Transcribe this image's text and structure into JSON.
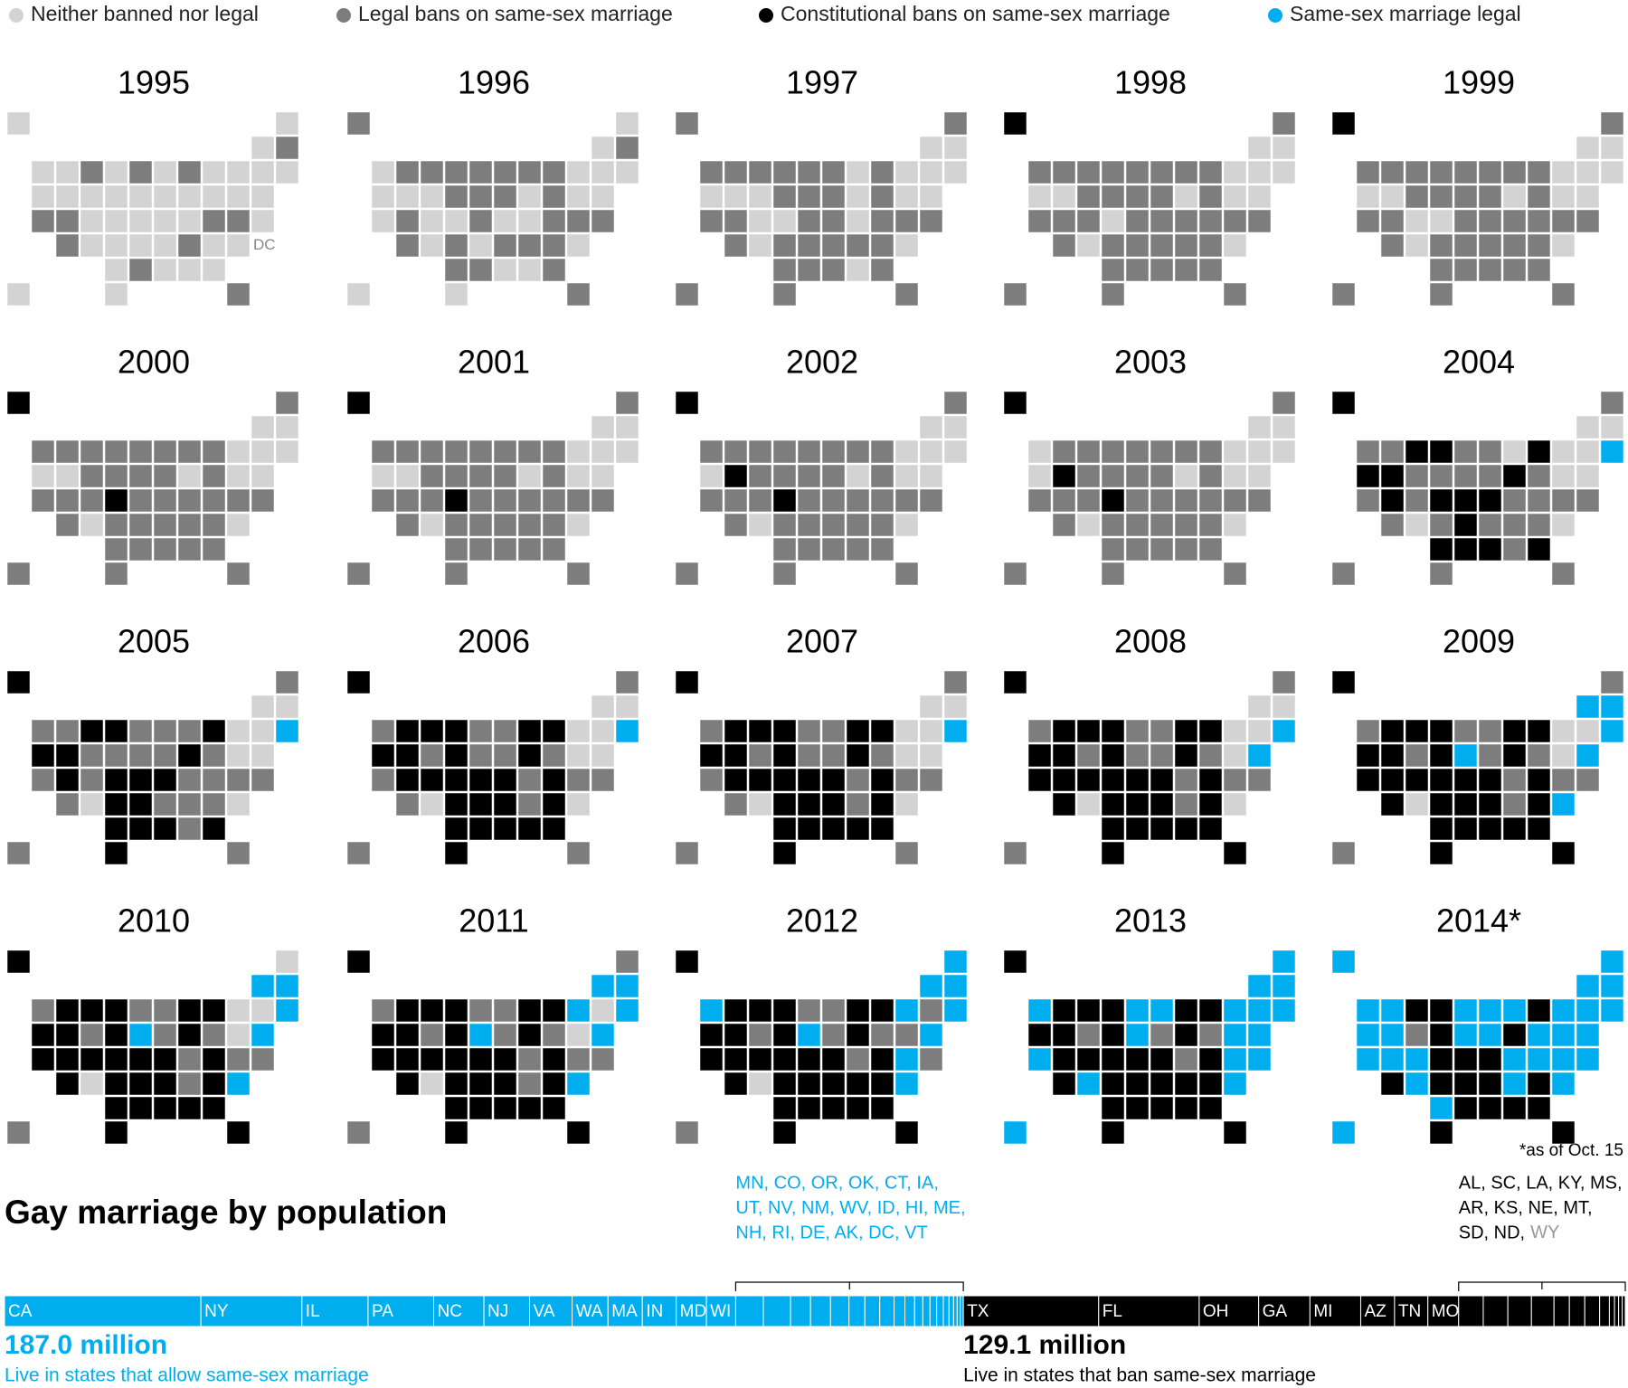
{
  "legend": [
    {
      "label": "Neither banned nor legal",
      "color": "#d3d3d3"
    },
    {
      "label": "Legal bans on same-sex marriage",
      "color": "#7d7d7d"
    },
    {
      "label": "Constitutional bans on same-sex marriage",
      "color": "#000000"
    },
    {
      "label": "Same-sex marriage legal",
      "color": "#00aeef"
    }
  ],
  "dc_label": "DC",
  "maps": [
    {
      "year": "1995",
      "neither": [
        "AK",
        "ME",
        "VT",
        "WA",
        "ID",
        "ND",
        "IL",
        "MI",
        "NY",
        "RI",
        "MA",
        "OR",
        "NV",
        "WY",
        "SD",
        "IA",
        "IN",
        "OH",
        "PA",
        "NJ",
        "CT",
        "CO",
        "NE",
        "MO",
        "KY",
        "WV",
        "DE",
        "NM",
        "KS",
        "AR",
        "TN",
        "SC",
        "DC",
        "OK",
        "MS",
        "AL",
        "GA",
        "HI",
        "TX"
      ],
      "constitutional": [],
      "legal": []
    },
    {
      "year": "1996",
      "neither": [
        "ME",
        "VT",
        "WA",
        "NY",
        "RI",
        "MA",
        "OR",
        "NV",
        "WY",
        "OH",
        "NJ",
        "CT",
        "CA",
        "CO",
        "NE",
        "KY",
        "WV",
        "NM",
        "AR",
        "DC",
        "MS",
        "AL",
        "HI",
        "TX"
      ],
      "constitutional": [],
      "legal": []
    },
    {
      "year": "1997",
      "neither": [
        "VT",
        "NY",
        "RI",
        "MA",
        "OR",
        "NV",
        "WI",
        "OH",
        "NJ",
        "CT",
        "CO",
        "NE",
        "WV",
        "NM",
        "DC",
        "AL",
        "WY",
        "NH"
      ],
      "constitutional": [],
      "legal": []
    },
    {
      "year": "1998",
      "neither": [
        "VT",
        "NY",
        "RI",
        "MA",
        "OR",
        "NV",
        "OH",
        "NJ",
        "CT",
        "NE",
        "NM",
        "DC",
        "NH"
      ],
      "constitutional": [
        "AK"
      ],
      "legal": []
    },
    {
      "year": "1999",
      "neither": [
        "VT",
        "NY",
        "RI",
        "MA",
        "OR",
        "NV",
        "OH",
        "NJ",
        "CT",
        "CO",
        "NE",
        "NM",
        "DC",
        "NH"
      ],
      "constitutional": [
        "AK"
      ],
      "legal": []
    },
    {
      "year": "2000",
      "neither": [
        "VT",
        "NY",
        "RI",
        "MA",
        "OR",
        "NV",
        "OH",
        "NJ",
        "CT",
        "NM",
        "DC",
        "NH"
      ],
      "constitutional": [
        "AK",
        "NE"
      ],
      "legal": []
    },
    {
      "year": "2001",
      "neither": [
        "VT",
        "NY",
        "RI",
        "MA",
        "OR",
        "NV",
        "OH",
        "NJ",
        "CT",
        "NM",
        "DC",
        "NH"
      ],
      "constitutional": [
        "AK",
        "NE"
      ],
      "legal": []
    },
    {
      "year": "2002",
      "neither": [
        "OR",
        "NM",
        "OH",
        "NY",
        "VT",
        "RI",
        "MA",
        "NJ",
        "CT",
        "DC",
        "NH"
      ],
      "constitutional": [
        "AK",
        "NE",
        "NV"
      ],
      "legal": []
    },
    {
      "year": "2003",
      "neither": [
        "WA",
        "OR",
        "NM",
        "OH",
        "NY",
        "VT",
        "RI",
        "MA",
        "NJ",
        "CT",
        "DC",
        "NH"
      ],
      "constitutional": [
        "AK",
        "NE",
        "NV"
      ],
      "legal": []
    },
    {
      "year": "2004",
      "neither": [
        "NM",
        "WI",
        "NY",
        "RI",
        "NJ",
        "CT",
        "NH",
        "VT",
        "DC"
      ],
      "constitutional": [
        "AK",
        "NE",
        "NV",
        "AR",
        "GA",
        "KY",
        "LA",
        "MI",
        "MS",
        "MO",
        "MT",
        "ND",
        "OH",
        "OK",
        "OR",
        "UT"
      ],
      "legal": [
        "MA"
      ]
    },
    {
      "year": "2005",
      "neither": [
        "NM",
        "NY",
        "RI",
        "NJ",
        "CT",
        "NH",
        "VT",
        "DC"
      ],
      "constitutional": [
        "AK",
        "NE",
        "NV",
        "AR",
        "GA",
        "KY",
        "LA",
        "MI",
        "MS",
        "MO",
        "MT",
        "ND",
        "OH",
        "OK",
        "OR",
        "UT",
        "KS",
        "TX"
      ],
      "legal": [
        "MA"
      ]
    },
    {
      "year": "2006",
      "neither": [
        "NM",
        "NY",
        "RI",
        "NJ",
        "CT",
        "NH",
        "VT",
        "DC"
      ],
      "constitutional": [
        "AK",
        "NE",
        "NV",
        "AR",
        "GA",
        "KY",
        "LA",
        "MI",
        "MS",
        "MO",
        "MT",
        "ND",
        "OH",
        "OK",
        "OR",
        "UT",
        "KS",
        "TX",
        "AL",
        "CO",
        "ID",
        "SC",
        "SD",
        "TN",
        "VA",
        "WI"
      ],
      "legal": [
        "MA"
      ]
    },
    {
      "year": "2007",
      "neither": [
        "NM",
        "NY",
        "RI",
        "NJ",
        "CT",
        "NH",
        "VT",
        "DC"
      ],
      "constitutional": [
        "AK",
        "NE",
        "NV",
        "AR",
        "GA",
        "KY",
        "LA",
        "MI",
        "MS",
        "MO",
        "MT",
        "ND",
        "OH",
        "OK",
        "OR",
        "UT",
        "KS",
        "TX",
        "AL",
        "CO",
        "ID",
        "SC",
        "SD",
        "TN",
        "VA",
        "WI"
      ],
      "legal": [
        "MA"
      ]
    },
    {
      "year": "2008",
      "neither": [
        "NM",
        "NY",
        "RI",
        "NJ",
        "NH",
        "VT",
        "DC"
      ],
      "constitutional": [
        "AK",
        "NE",
        "NV",
        "AR",
        "GA",
        "KY",
        "LA",
        "MI",
        "MS",
        "MO",
        "MT",
        "ND",
        "OH",
        "OK",
        "OR",
        "UT",
        "KS",
        "TX",
        "AL",
        "CO",
        "ID",
        "SC",
        "SD",
        "TN",
        "VA",
        "WI",
        "AZ",
        "CA",
        "FL"
      ],
      "legal": [
        "MA",
        "CT"
      ]
    },
    {
      "year": "2009",
      "neither": [
        "NM",
        "NY",
        "RI",
        "NJ"
      ],
      "constitutional": [
        "AK",
        "NE",
        "NV",
        "AR",
        "GA",
        "KY",
        "LA",
        "MI",
        "MS",
        "MO",
        "MT",
        "ND",
        "OH",
        "OK",
        "OR",
        "UT",
        "KS",
        "TX",
        "AL",
        "CO",
        "ID",
        "SC",
        "SD",
        "TN",
        "VA",
        "WI",
        "AZ",
        "CA",
        "FL"
      ],
      "legal": [
        "MA",
        "CT",
        "IA",
        "VT",
        "NH",
        "DC"
      ]
    },
    {
      "year": "2010",
      "neither": [
        "NM",
        "NY",
        "RI",
        "NJ",
        "ME"
      ],
      "constitutional": [
        "AK",
        "NE",
        "NV",
        "AR",
        "GA",
        "KY",
        "LA",
        "MI",
        "MS",
        "MO",
        "MT",
        "ND",
        "OH",
        "OK",
        "OR",
        "UT",
        "KS",
        "TX",
        "AL",
        "CO",
        "ID",
        "SC",
        "SD",
        "TN",
        "VA",
        "WI",
        "AZ",
        "CA",
        "FL"
      ],
      "legal": [
        "MA",
        "CT",
        "IA",
        "VT",
        "NH",
        "DC"
      ]
    },
    {
      "year": "2011",
      "neither": [
        "NM",
        "RI",
        "NJ"
      ],
      "constitutional": [
        "AK",
        "NE",
        "NV",
        "AR",
        "GA",
        "KY",
        "LA",
        "MI",
        "MS",
        "MO",
        "MT",
        "ND",
        "OH",
        "OK",
        "OR",
        "UT",
        "KS",
        "TX",
        "AL",
        "CO",
        "ID",
        "SC",
        "SD",
        "TN",
        "VA",
        "WI",
        "AZ",
        "CA",
        "FL"
      ],
      "legal": [
        "MA",
        "CT",
        "IA",
        "VT",
        "NH",
        "DC",
        "NY"
      ]
    },
    {
      "year": "2012",
      "neither": [
        "NM"
      ],
      "constitutional": [
        "AK",
        "NE",
        "NV",
        "AR",
        "GA",
        "KY",
        "LA",
        "MI",
        "MS",
        "MO",
        "MT",
        "ND",
        "OH",
        "OK",
        "OR",
        "UT",
        "KS",
        "TX",
        "AL",
        "CO",
        "ID",
        "SC",
        "SD",
        "TN",
        "VA",
        "WI",
        "AZ",
        "CA",
        "FL",
        "NC"
      ],
      "legal": [
        "MA",
        "CT",
        "IA",
        "VT",
        "NH",
        "DC",
        "NY",
        "WA",
        "ME",
        "MD"
      ]
    },
    {
      "year": "2013",
      "neither": [],
      "constitutional": [
        "AK",
        "NE",
        "NV",
        "AR",
        "GA",
        "KY",
        "LA",
        "MI",
        "MS",
        "MO",
        "MT",
        "ND",
        "OH",
        "OK",
        "OR",
        "UT",
        "KS",
        "TX",
        "AL",
        "CO",
        "ID",
        "SC",
        "SD",
        "TN",
        "VA",
        "WI",
        "AZ",
        "FL",
        "NC"
      ],
      "legal": [
        "MA",
        "CT",
        "IA",
        "VT",
        "NH",
        "DC",
        "NY",
        "WA",
        "ME",
        "MD",
        "CA",
        "NJ",
        "NM",
        "MN",
        "DE",
        "RI",
        "HI",
        "IL"
      ]
    },
    {
      "year": "2014*",
      "neither": [],
      "constitutional": [
        "TX",
        "FL",
        "OH",
        "GA",
        "MI",
        "AZ",
        "TN",
        "MO",
        "AL",
        "SC",
        "LA",
        "KY",
        "MS",
        "AR",
        "KS",
        "NE",
        "MT",
        "SD",
        "ND"
      ],
      "legal": [
        "CA",
        "NY",
        "IL",
        "PA",
        "NC",
        "NJ",
        "VA",
        "WA",
        "MA",
        "IN",
        "MD",
        "WI",
        "MN",
        "CO",
        "OR",
        "OK",
        "CT",
        "IA",
        "UT",
        "NV",
        "NM",
        "WV",
        "ID",
        "HI",
        "ME",
        "NH",
        "RI",
        "DE",
        "AK",
        "DC",
        "VT"
      ]
    }
  ],
  "footnote": "*as of Oct. 15",
  "population": {
    "title": "Gay marriage by population",
    "legal_group": {
      "color": "#00aeef",
      "total_label": "187.0 million",
      "caption": "Live in states that allow same-sex marriage",
      "note_lines": [
        "MN, CO, OR, OK, CT, IA,",
        "UT, NV, NM, WV, ID, HI, ME,",
        "NH, RI, DE, AK, DC, VT"
      ],
      "segments": [
        {
          "name": "CA",
          "value": 38.3
        },
        {
          "name": "NY",
          "value": 19.7
        },
        {
          "name": "IL",
          "value": 12.9
        },
        {
          "name": "PA",
          "value": 12.8
        },
        {
          "name": "NC",
          "value": 9.8
        },
        {
          "name": "NJ",
          "value": 8.9
        },
        {
          "name": "VA",
          "value": 8.3
        },
        {
          "name": "WA",
          "value": 7.0
        },
        {
          "name": "MA",
          "value": 6.7
        },
        {
          "name": "IN",
          "value": 6.6
        },
        {
          "name": "MD",
          "value": 5.9
        },
        {
          "name": "WI",
          "value": 5.7
        },
        {
          "name": null,
          "value": 5.4
        },
        {
          "name": null,
          "value": 5.3
        },
        {
          "name": null,
          "value": 3.9
        },
        {
          "name": null,
          "value": 3.9
        },
        {
          "name": null,
          "value": 3.6
        },
        {
          "name": null,
          "value": 3.1
        },
        {
          "name": null,
          "value": 2.9
        },
        {
          "name": null,
          "value": 2.8
        },
        {
          "name": null,
          "value": 2.1
        },
        {
          "name": null,
          "value": 1.9
        },
        {
          "name": null,
          "value": 1.6
        },
        {
          "name": null,
          "value": 1.4
        },
        {
          "name": null,
          "value": 1.3
        },
        {
          "name": null,
          "value": 1.3
        },
        {
          "name": null,
          "value": 1.1
        },
        {
          "name": null,
          "value": 0.9
        },
        {
          "name": null,
          "value": 0.7
        },
        {
          "name": null,
          "value": 0.6
        },
        {
          "name": null,
          "value": 0.6
        }
      ]
    },
    "ban_group": {
      "color": "#000000",
      "total_label": "129.1 million",
      "caption": "Live in states that ban same-sex marriage",
      "note_lines": [
        "AL, SC, LA, KY, MS,",
        "AR, KS, NE, MT,",
        "SD, ND,"
      ],
      "note_gray_tail": "WY",
      "segments": [
        {
          "name": "TX",
          "value": 26.4
        },
        {
          "name": "FL",
          "value": 19.6
        },
        {
          "name": "OH",
          "value": 11.6
        },
        {
          "name": "GA",
          "value": 10.0
        },
        {
          "name": "MI",
          "value": 9.9
        },
        {
          "name": "AZ",
          "value": 6.6
        },
        {
          "name": "TN",
          "value": 6.5
        },
        {
          "name": "MO",
          "value": 6.0
        },
        {
          "name": null,
          "value": 4.8
        },
        {
          "name": null,
          "value": 4.8
        },
        {
          "name": null,
          "value": 4.6
        },
        {
          "name": null,
          "value": 4.4
        },
        {
          "name": null,
          "value": 3.0
        },
        {
          "name": null,
          "value": 3.0
        },
        {
          "name": null,
          "value": 2.9
        },
        {
          "name": null,
          "value": 1.9
        },
        {
          "name": null,
          "value": 1.0
        },
        {
          "name": null,
          "value": 0.8
        },
        {
          "name": null,
          "value": 0.7
        },
        {
          "name": null,
          "value": 0.6
        }
      ]
    }
  }
}
